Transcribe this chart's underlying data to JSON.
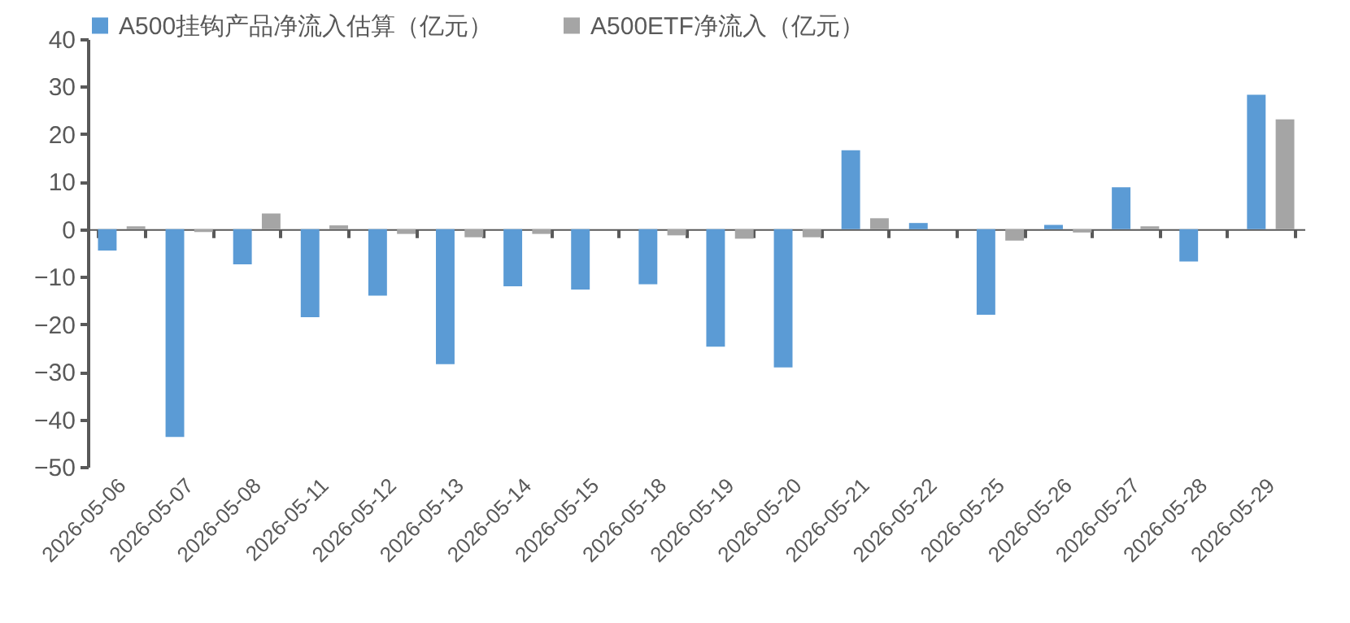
{
  "chart_data": {
    "type": "bar",
    "categories": [
      "2026-05-06",
      "2026-05-07",
      "2026-05-08",
      "2026-05-11",
      "2026-05-12",
      "2026-05-13",
      "2026-05-14",
      "2026-05-15",
      "2026-05-18",
      "2026-05-19",
      "2026-05-20",
      "2026-05-21",
      "2026-05-22",
      "2026-05-25",
      "2026-05-26",
      "2026-05-27",
      "2026-05-28",
      "2026-05-29"
    ],
    "series": [
      {
        "name": "A500挂钩产品净流入估算（亿元）",
        "color": "#5b9bd5",
        "values": [
          -4.5,
          -43.7,
          -7.4,
          -18.5,
          -14.0,
          -28.4,
          -12.0,
          -12.7,
          -11.6,
          -24.7,
          -29.1,
          16.6,
          1.3,
          -18.0,
          0.9,
          8.8,
          -6.8,
          28.3
        ]
      },
      {
        "name": "A500ETF净流入（亿元）",
        "color": "#a5a5a5",
        "values": [
          0.6,
          -0.6,
          3.3,
          0.8,
          -1.0,
          -1.7,
          -1.0,
          null,
          -1.3,
          -2.0,
          -1.7,
          2.3,
          0.0,
          -2.4,
          -0.7,
          0.6,
          0.0,
          23.1
        ]
      }
    ],
    "ylim": [
      -50,
      40
    ],
    "yticks": [
      -50,
      -40,
      -30,
      -20,
      -10,
      0,
      10,
      20,
      30,
      40
    ],
    "legend": "top"
  }
}
